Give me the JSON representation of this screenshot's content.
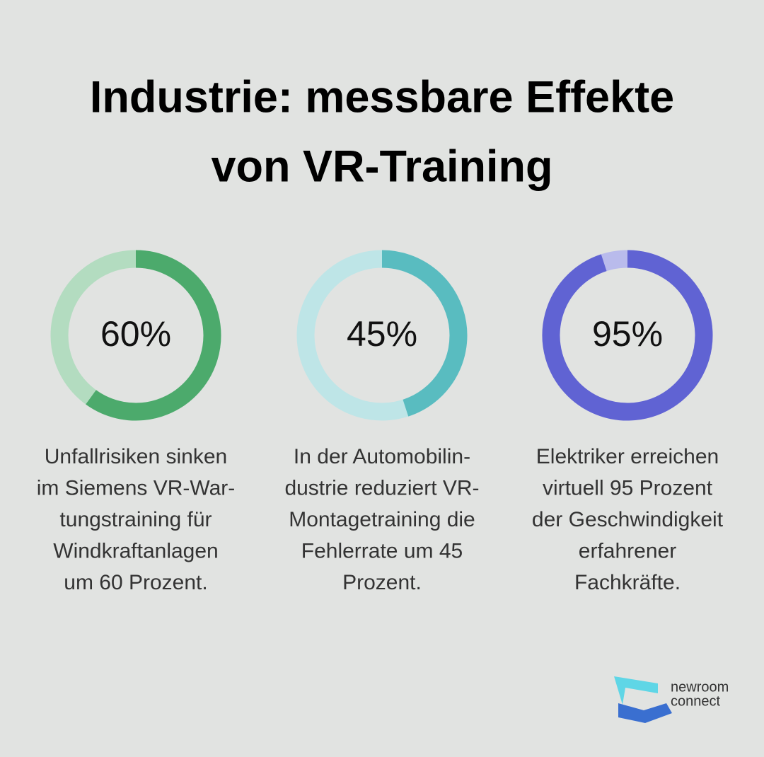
{
  "title": [
    "Industrie: messbare Effekte",
    "von VR-Training"
  ],
  "chart_data": [
    {
      "type": "donut",
      "values": [
        60
      ],
      "value_labels": [
        "60%"
      ],
      "color": "#4caa6c",
      "track_color": "#b3dcc0",
      "caption": [
        "Unfallrisiken sinken",
        "im Siemens VR-War-",
        "tungstraining für",
        "Windkraftanlagen",
        "um 60 Prozent."
      ]
    },
    {
      "type": "donut",
      "values": [
        45
      ],
      "value_labels": [
        "45%"
      ],
      "color": "#59bcc0",
      "track_color": "#bee5e7",
      "caption": [
        "In der Automobilin-",
        "dustrie reduziert VR-",
        "Montagetraining die",
        "Fehlerrate um 45",
        "Prozent."
      ]
    },
    {
      "type": "donut",
      "values": [
        95
      ],
      "value_labels": [
        "95%"
      ],
      "color": "#6063d3",
      "track_color": "#b9bbec",
      "caption": [
        "Elektriker erreichen",
        "virtuell 95 Prozent",
        "der Geschwindigkeit",
        "erfahrener",
        "Fachkräfte."
      ]
    }
  ],
  "logo": [
    "newroom",
    "connect"
  ]
}
